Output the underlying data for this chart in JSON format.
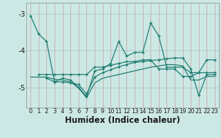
{
  "x": [
    0,
    1,
    2,
    3,
    4,
    5,
    6,
    7,
    8,
    9,
    10,
    11,
    12,
    13,
    14,
    15,
    16,
    17,
    18,
    19,
    20,
    21,
    22,
    23
  ],
  "line1": [
    -3.05,
    -3.55,
    -3.75,
    -4.85,
    -4.75,
    -4.8,
    -5.0,
    -5.25,
    -4.55,
    -4.5,
    -4.35,
    -3.75,
    -4.15,
    -4.05,
    -4.05,
    -3.25,
    -3.6,
    -4.45,
    -4.45,
    -4.45,
    -4.6,
    -4.6,
    -4.25,
    -4.25
  ],
  "line2_x": [
    1,
    2,
    3,
    4,
    5,
    6,
    7,
    8,
    9,
    10,
    11,
    12,
    13,
    14,
    15,
    16,
    17,
    18,
    19,
    20,
    21,
    22,
    23
  ],
  "line2": [
    -4.65,
    -4.65,
    -4.65,
    -4.65,
    -4.65,
    -4.65,
    -4.65,
    -4.45,
    -4.45,
    -4.4,
    -4.35,
    -4.3,
    -4.3,
    -4.25,
    -4.25,
    -4.5,
    -4.5,
    -4.5,
    -4.7,
    -4.7,
    -4.6,
    -4.6,
    -4.6
  ],
  "line3_x": [
    2,
    3,
    4,
    5,
    6,
    7,
    8,
    9,
    10,
    11,
    12,
    13,
    14,
    15,
    16,
    17,
    18,
    19,
    20,
    21,
    22,
    23
  ],
  "line3": [
    -4.75,
    -4.85,
    -4.85,
    -4.88,
    -4.92,
    -5.18,
    -4.72,
    -4.6,
    -4.52,
    -4.44,
    -4.38,
    -4.32,
    -4.3,
    -4.27,
    -4.25,
    -4.22,
    -4.2,
    -4.2,
    -4.5,
    -5.22,
    -4.65,
    -4.65
  ],
  "line4": [
    -4.72,
    -4.72,
    -4.72,
    -4.78,
    -4.8,
    -4.85,
    -5.02,
    -5.28,
    -4.88,
    -4.75,
    -4.7,
    -4.65,
    -4.6,
    -4.55,
    -4.5,
    -4.45,
    -4.42,
    -4.38,
    -4.38,
    -4.42,
    -4.8,
    -4.8,
    -4.7,
    -4.7
  ],
  "color": "#1a7a6e",
  "bg_color": "#cce8e4",
  "grid_color_v": "#c8a8a8",
  "grid_color_h": "#a8c8c4",
  "yticks": [
    -5,
    -4,
    -3
  ],
  "ylim": [
    -5.55,
    -2.7
  ],
  "xlim": [
    -0.5,
    23.5
  ],
  "xlabel": "Humidex (Indice chaleur)",
  "xlabel_fontsize": 8.5,
  "tick_fontsize": 7.5
}
